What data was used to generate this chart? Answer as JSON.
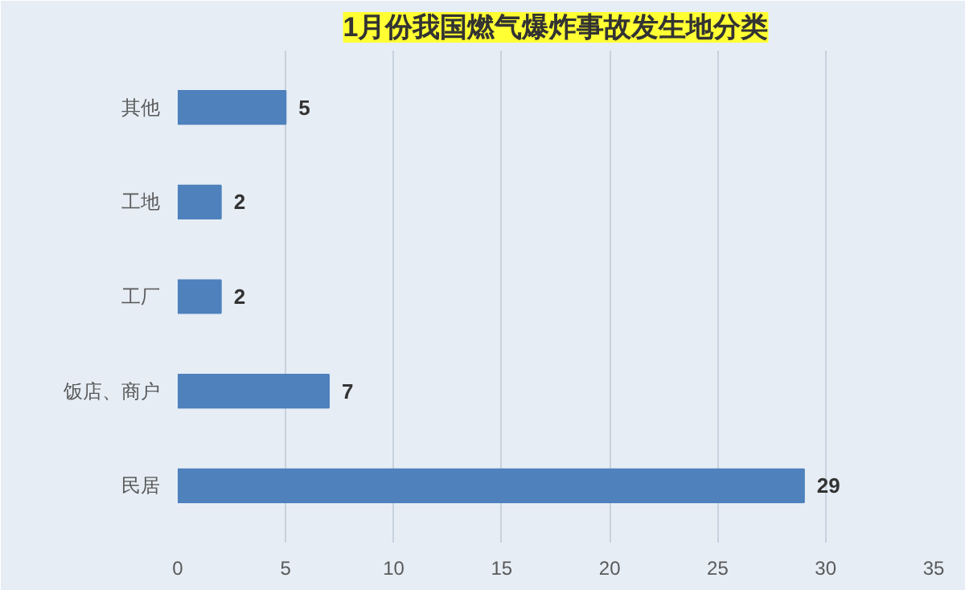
{
  "chart_data": {
    "type": "bar",
    "orientation": "horizontal",
    "title": "1月份我国燃气爆炸事故发生地分类",
    "categories": [
      "其他",
      "工地",
      "工厂",
      "饭店、商户",
      "民居"
    ],
    "values": [
      5,
      2,
      2,
      7,
      29
    ],
    "color": "#4f81bd",
    "data_labels": true,
    "xlim": [
      0,
      35
    ],
    "xticks": [
      0,
      5,
      10,
      15,
      20,
      25,
      30,
      35
    ],
    "grid": "x"
  }
}
